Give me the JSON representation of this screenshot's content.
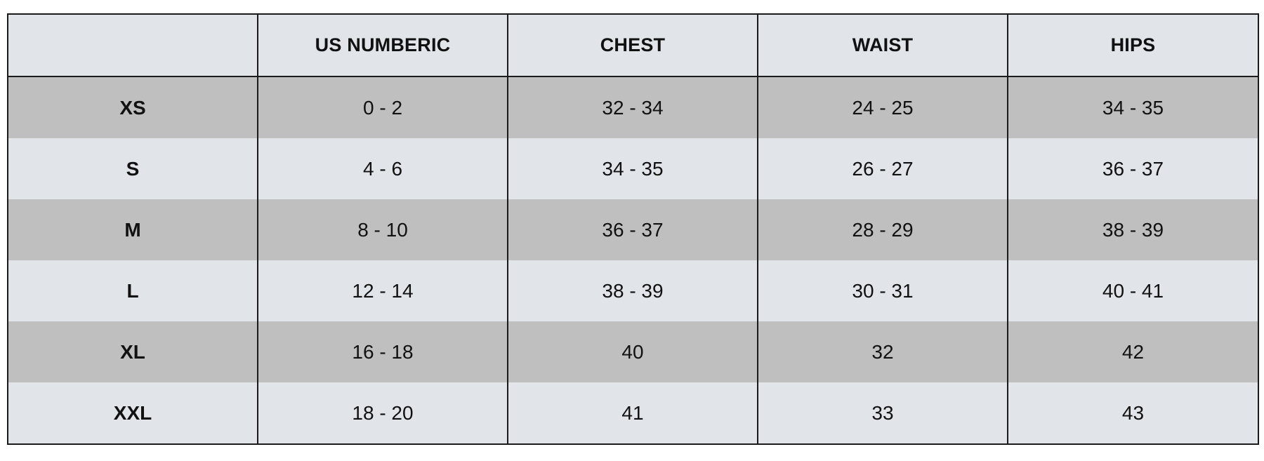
{
  "size_chart": {
    "headers": [
      "",
      "US NUMBERIC",
      "CHEST",
      "WAIST",
      "HIPS"
    ],
    "rows": [
      {
        "size": "XS",
        "us_numeric": "0 - 2",
        "chest": "32 - 34",
        "waist": "24 - 25",
        "hips": "34 - 35"
      },
      {
        "size": "S",
        "us_numeric": "4 - 6",
        "chest": "34 - 35",
        "waist": "26 - 27",
        "hips": "36 - 37"
      },
      {
        "size": "M",
        "us_numeric": "8 - 10",
        "chest": "36 - 37",
        "waist": "28 - 29",
        "hips": "38 - 39"
      },
      {
        "size": "L",
        "us_numeric": "12 - 14",
        "chest": "38 - 39",
        "waist": "30 - 31",
        "hips": "40 - 41"
      },
      {
        "size": "XL",
        "us_numeric": "16 - 18",
        "chest": "40",
        "waist": "32",
        "hips": "42"
      },
      {
        "size": "XXL",
        "us_numeric": "18 - 20",
        "chest": "41",
        "waist": "33",
        "hips": "43"
      }
    ]
  },
  "colors": {
    "header_bg": "#e1e4e8",
    "row_dark": "#bfbfbf",
    "row_light": "#e1e4e8",
    "border": "#1a1a1a",
    "text": "#111111"
  }
}
